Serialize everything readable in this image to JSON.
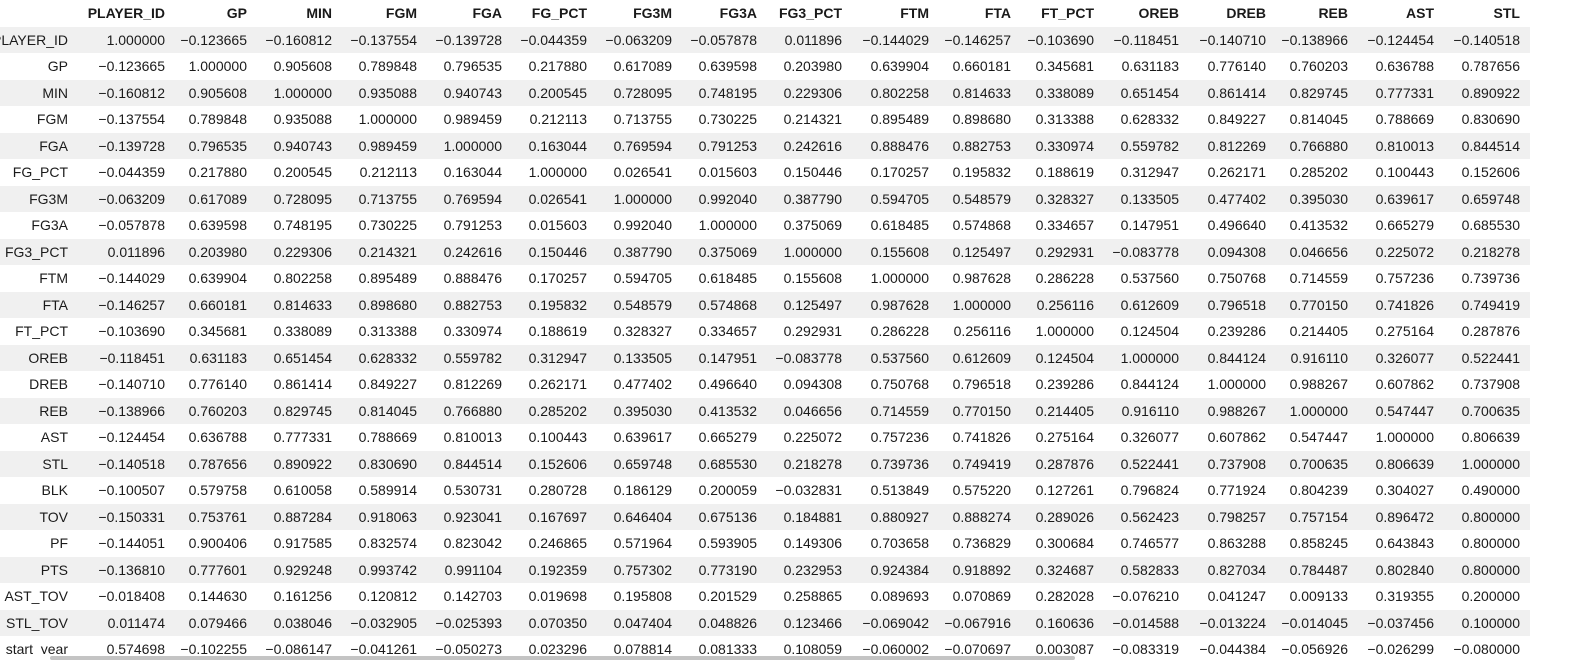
{
  "columns": [
    "PLAYER_ID",
    "GP",
    "MIN",
    "FGM",
    "FGA",
    "FG_PCT",
    "FG3M",
    "FG3A",
    "FG3_PCT",
    "FTM",
    "FTA",
    "FT_PCT",
    "OREB",
    "DREB",
    "REB",
    "AST",
    "STL"
  ],
  "rows": [
    {
      "label": "PLAYER_ID",
      "values": [
        "1.000000",
        "−0.123665",
        "−0.160812",
        "−0.137554",
        "−0.139728",
        "−0.044359",
        "−0.063209",
        "−0.057878",
        "0.011896",
        "−0.144029",
        "−0.146257",
        "−0.103690",
        "−0.118451",
        "−0.140710",
        "−0.138966",
        "−0.124454",
        "−0.140518"
      ]
    },
    {
      "label": "GP",
      "values": [
        "−0.123665",
        "1.000000",
        "0.905608",
        "0.789848",
        "0.796535",
        "0.217880",
        "0.617089",
        "0.639598",
        "0.203980",
        "0.639904",
        "0.660181",
        "0.345681",
        "0.631183",
        "0.776140",
        "0.760203",
        "0.636788",
        "0.787656"
      ]
    },
    {
      "label": "MIN",
      "values": [
        "−0.160812",
        "0.905608",
        "1.000000",
        "0.935088",
        "0.940743",
        "0.200545",
        "0.728095",
        "0.748195",
        "0.229306",
        "0.802258",
        "0.814633",
        "0.338089",
        "0.651454",
        "0.861414",
        "0.829745",
        "0.777331",
        "0.890922"
      ]
    },
    {
      "label": "FGM",
      "values": [
        "−0.137554",
        "0.789848",
        "0.935088",
        "1.000000",
        "0.989459",
        "0.212113",
        "0.713755",
        "0.730225",
        "0.214321",
        "0.895489",
        "0.898680",
        "0.313388",
        "0.628332",
        "0.849227",
        "0.814045",
        "0.788669",
        "0.830690"
      ]
    },
    {
      "label": "FGA",
      "values": [
        "−0.139728",
        "0.796535",
        "0.940743",
        "0.989459",
        "1.000000",
        "0.163044",
        "0.769594",
        "0.791253",
        "0.242616",
        "0.888476",
        "0.882753",
        "0.330974",
        "0.559782",
        "0.812269",
        "0.766880",
        "0.810013",
        "0.844514"
      ]
    },
    {
      "label": "FG_PCT",
      "values": [
        "−0.044359",
        "0.217880",
        "0.200545",
        "0.212113",
        "0.163044",
        "1.000000",
        "0.026541",
        "0.015603",
        "0.150446",
        "0.170257",
        "0.195832",
        "0.188619",
        "0.312947",
        "0.262171",
        "0.285202",
        "0.100443",
        "0.152606"
      ]
    },
    {
      "label": "FG3M",
      "values": [
        "−0.063209",
        "0.617089",
        "0.728095",
        "0.713755",
        "0.769594",
        "0.026541",
        "1.000000",
        "0.992040",
        "0.387790",
        "0.594705",
        "0.548579",
        "0.328327",
        "0.133505",
        "0.477402",
        "0.395030",
        "0.639617",
        "0.659748"
      ]
    },
    {
      "label": "FG3A",
      "values": [
        "−0.057878",
        "0.639598",
        "0.748195",
        "0.730225",
        "0.791253",
        "0.015603",
        "0.992040",
        "1.000000",
        "0.375069",
        "0.618485",
        "0.574868",
        "0.334657",
        "0.147951",
        "0.496640",
        "0.413532",
        "0.665279",
        "0.685530"
      ]
    },
    {
      "label": "FG3_PCT",
      "values": [
        "0.011896",
        "0.203980",
        "0.229306",
        "0.214321",
        "0.242616",
        "0.150446",
        "0.387790",
        "0.375069",
        "1.000000",
        "0.155608",
        "0.125497",
        "0.292931",
        "−0.083778",
        "0.094308",
        "0.046656",
        "0.225072",
        "0.218278"
      ]
    },
    {
      "label": "FTM",
      "values": [
        "−0.144029",
        "0.639904",
        "0.802258",
        "0.895489",
        "0.888476",
        "0.170257",
        "0.594705",
        "0.618485",
        "0.155608",
        "1.000000",
        "0.987628",
        "0.286228",
        "0.537560",
        "0.750768",
        "0.714559",
        "0.757236",
        "0.739736"
      ]
    },
    {
      "label": "FTA",
      "values": [
        "−0.146257",
        "0.660181",
        "0.814633",
        "0.898680",
        "0.882753",
        "0.195832",
        "0.548579",
        "0.574868",
        "0.125497",
        "0.987628",
        "1.000000",
        "0.256116",
        "0.612609",
        "0.796518",
        "0.770150",
        "0.741826",
        "0.749419"
      ]
    },
    {
      "label": "FT_PCT",
      "values": [
        "−0.103690",
        "0.345681",
        "0.338089",
        "0.313388",
        "0.330974",
        "0.188619",
        "0.328327",
        "0.334657",
        "0.292931",
        "0.286228",
        "0.256116",
        "1.000000",
        "0.124504",
        "0.239286",
        "0.214405",
        "0.275164",
        "0.287876"
      ]
    },
    {
      "label": "OREB",
      "values": [
        "−0.118451",
        "0.631183",
        "0.651454",
        "0.628332",
        "0.559782",
        "0.312947",
        "0.133505",
        "0.147951",
        "−0.083778",
        "0.537560",
        "0.612609",
        "0.124504",
        "1.000000",
        "0.844124",
        "0.916110",
        "0.326077",
        "0.522441"
      ]
    },
    {
      "label": "DREB",
      "values": [
        "−0.140710",
        "0.776140",
        "0.861414",
        "0.849227",
        "0.812269",
        "0.262171",
        "0.477402",
        "0.496640",
        "0.094308",
        "0.750768",
        "0.796518",
        "0.239286",
        "0.844124",
        "1.000000",
        "0.988267",
        "0.607862",
        "0.737908"
      ]
    },
    {
      "label": "REB",
      "values": [
        "−0.138966",
        "0.760203",
        "0.829745",
        "0.814045",
        "0.766880",
        "0.285202",
        "0.395030",
        "0.413532",
        "0.046656",
        "0.714559",
        "0.770150",
        "0.214405",
        "0.916110",
        "0.988267",
        "1.000000",
        "0.547447",
        "0.700635"
      ]
    },
    {
      "label": "AST",
      "values": [
        "−0.124454",
        "0.636788",
        "0.777331",
        "0.788669",
        "0.810013",
        "0.100443",
        "0.639617",
        "0.665279",
        "0.225072",
        "0.757236",
        "0.741826",
        "0.275164",
        "0.326077",
        "0.607862",
        "0.547447",
        "1.000000",
        "0.806639"
      ]
    },
    {
      "label": "STL",
      "values": [
        "−0.140518",
        "0.787656",
        "0.890922",
        "0.830690",
        "0.844514",
        "0.152606",
        "0.659748",
        "0.685530",
        "0.218278",
        "0.739736",
        "0.749419",
        "0.287876",
        "0.522441",
        "0.737908",
        "0.700635",
        "0.806639",
        "1.000000"
      ]
    },
    {
      "label": "BLK",
      "values": [
        "−0.100507",
        "0.579758",
        "0.610058",
        "0.589914",
        "0.530731",
        "0.280728",
        "0.186129",
        "0.200059",
        "−0.032831",
        "0.513849",
        "0.575220",
        "0.127261",
        "0.796824",
        "0.771924",
        "0.804239",
        "0.304027",
        "0.490000"
      ]
    },
    {
      "label": "TOV",
      "values": [
        "−0.150331",
        "0.753761",
        "0.887284",
        "0.918063",
        "0.923041",
        "0.167697",
        "0.646404",
        "0.675136",
        "0.184881",
        "0.880927",
        "0.888274",
        "0.289026",
        "0.562423",
        "0.798257",
        "0.757154",
        "0.896472",
        "0.800000"
      ]
    },
    {
      "label": "PF",
      "values": [
        "−0.144051",
        "0.900406",
        "0.917585",
        "0.832574",
        "0.823042",
        "0.246865",
        "0.571964",
        "0.593905",
        "0.149306",
        "0.703658",
        "0.736829",
        "0.300684",
        "0.746577",
        "0.863288",
        "0.858245",
        "0.643843",
        "0.800000"
      ]
    },
    {
      "label": "PTS",
      "values": [
        "−0.136810",
        "0.777601",
        "0.929248",
        "0.993742",
        "0.991104",
        "0.192359",
        "0.757302",
        "0.773190",
        "0.232953",
        "0.924384",
        "0.918892",
        "0.324687",
        "0.582833",
        "0.827034",
        "0.784487",
        "0.802840",
        "0.800000"
      ]
    },
    {
      "label": "AST_TOV",
      "values": [
        "−0.018408",
        "0.144630",
        "0.161256",
        "0.120812",
        "0.142703",
        "0.019698",
        "0.195808",
        "0.201529",
        "0.258865",
        "0.089693",
        "0.070869",
        "0.282028",
        "−0.076210",
        "0.041247",
        "0.009133",
        "0.319355",
        "0.200000"
      ]
    },
    {
      "label": "STL_TOV",
      "values": [
        "0.011474",
        "0.079466",
        "0.038046",
        "−0.032905",
        "−0.025393",
        "0.070350",
        "0.047404",
        "0.048826",
        "0.123466",
        "−0.069042",
        "−0.067916",
        "0.160636",
        "−0.014588",
        "−0.013224",
        "−0.014045",
        "−0.037456",
        "0.100000"
      ]
    },
    {
      "label": "_start_year",
      "values": [
        "0.574698",
        "−0.102255",
        "−0.086147",
        "−0.041261",
        "−0.050273",
        "0.023296",
        "0.078814",
        "0.081333",
        "0.108059",
        "−0.060002",
        "−0.070697",
        "0.003087",
        "−0.083319",
        "−0.044384",
        "−0.056926",
        "−0.026299",
        "−0.080000"
      ]
    }
  ]
}
